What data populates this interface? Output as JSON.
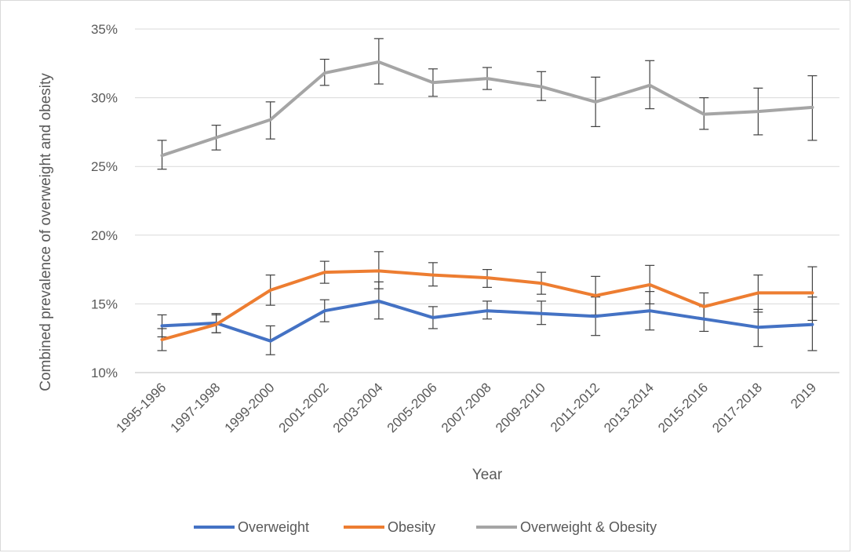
{
  "chart_data": {
    "type": "line",
    "title": "",
    "xlabel": "Year",
    "ylabel": "Combined prevalence of overweight and obesity",
    "ylim": [
      0.1,
      0.35
    ],
    "yticks": [
      0.1,
      0.15,
      0.2,
      0.25,
      0.3,
      0.35
    ],
    "yticklabels": [
      "10%",
      "15%",
      "20%",
      "25%",
      "30%",
      "35%"
    ],
    "grid": "horizontal",
    "legend_position": "bottom",
    "categories": [
      "1995-1996",
      "1997-1998",
      "1999-2000",
      "2001-2002",
      "2003-2004",
      "2005-2006",
      "2007-2008",
      "2009-2010",
      "2011-2012",
      "2013-2014",
      "2015-2016",
      "2017-2018",
      "2019"
    ],
    "series": [
      {
        "name": "Overweight",
        "color": "#4472c4",
        "values": [
          0.134,
          0.136,
          0.123,
          0.145,
          0.152,
          0.14,
          0.145,
          0.143,
          0.141,
          0.145,
          0.139,
          0.133,
          0.135
        ],
        "error_low": [
          0.126,
          0.129,
          0.113,
          0.137,
          0.139,
          0.132,
          0.139,
          0.135,
          0.127,
          0.131,
          0.13,
          0.119,
          0.116
        ],
        "error_high": [
          0.142,
          0.143,
          0.134,
          0.153,
          0.166,
          0.148,
          0.152,
          0.152,
          0.155,
          0.159,
          0.148,
          0.146,
          0.155
        ]
      },
      {
        "name": "Obesity",
        "color": "#ed7d31",
        "values": [
          0.124,
          0.135,
          0.16,
          0.173,
          0.174,
          0.171,
          0.169,
          0.165,
          0.156,
          0.164,
          0.148,
          0.158,
          0.158
        ],
        "error_low": [
          0.116,
          0.129,
          0.149,
          0.165,
          0.161,
          0.163,
          0.162,
          0.157,
          0.142,
          0.15,
          0.139,
          0.144,
          0.138
        ],
        "error_high": [
          0.132,
          0.142,
          0.171,
          0.181,
          0.188,
          0.18,
          0.175,
          0.173,
          0.17,
          0.178,
          0.158,
          0.171,
          0.177
        ]
      },
      {
        "name": "Overweight & Obesity",
        "color": "#a5a5a5",
        "values": [
          0.258,
          0.271,
          0.284,
          0.318,
          0.326,
          0.311,
          0.314,
          0.308,
          0.297,
          0.309,
          0.288,
          0.29,
          0.293
        ],
        "error_low": [
          0.248,
          0.262,
          0.27,
          0.309,
          0.31,
          0.301,
          0.306,
          0.298,
          0.279,
          0.292,
          0.277,
          0.273,
          0.269
        ],
        "error_high": [
          0.269,
          0.28,
          0.297,
          0.328,
          0.343,
          0.321,
          0.322,
          0.319,
          0.315,
          0.327,
          0.3,
          0.307,
          0.316
        ]
      }
    ]
  }
}
